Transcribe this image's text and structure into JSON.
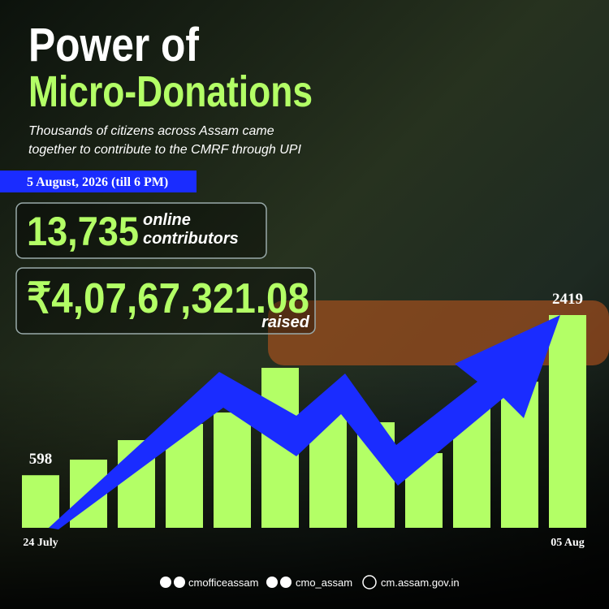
{
  "header": {
    "title_line1": "Power of",
    "title_line2": "Micro-Donations",
    "subtitle_lines": [
      "Thousands of citizens across Assam came",
      "together to contribute to the CMRF through UPI"
    ]
  },
  "date_banner": "5 August, 2026 (till 6 PM)",
  "stats": {
    "contributors_value": "13,735",
    "contributors_label1": "online",
    "contributors_label2": "contributors",
    "raised_value": "₹4,07,67,321.08",
    "raised_label": "raised"
  },
  "footer": {
    "facebook": "cmofficeassam",
    "instagram": "cmo_assam",
    "website": "cm.assam.gov.in"
  },
  "chart_data": {
    "type": "bar",
    "categories": [
      "24 July",
      null,
      null,
      null,
      null,
      null,
      null,
      null,
      null,
      null,
      null,
      "05 Aug"
    ],
    "values": [
      598,
      775,
      997,
      1182,
      1311,
      1819,
      1339,
      1200,
      849,
      1385,
      1662,
      2419
    ],
    "color": "#b3ff66"
  }
}
